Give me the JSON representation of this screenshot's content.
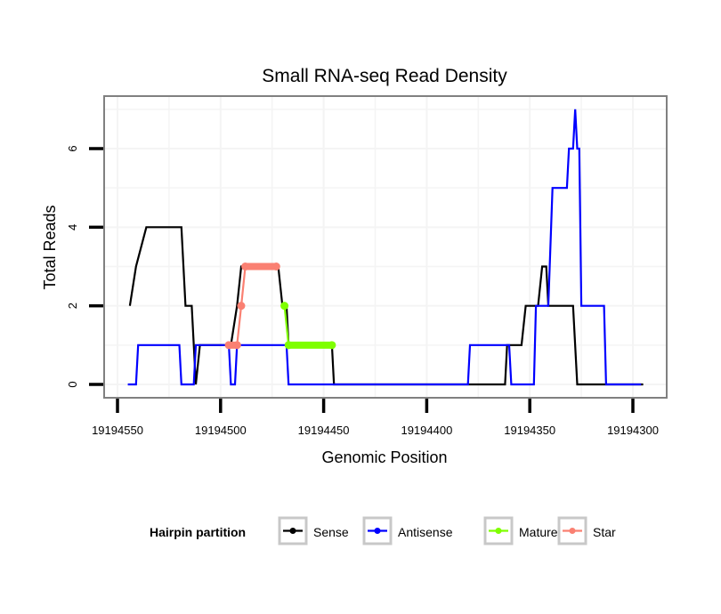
{
  "chart_data": {
    "type": "line",
    "title": "Small RNA-seq Read Density",
    "xlabel": "Genomic Position",
    "ylabel": "Total Reads",
    "xlim": [
      19194560,
      19194290
    ],
    "x_reversed": true,
    "ylim": [
      -0.35,
      7.35
    ],
    "x_ticks": [
      19194550,
      19194500,
      19194450,
      19194400,
      19194350,
      19194300
    ],
    "x_tick_labels": [
      "19194550",
      "19194500",
      "19194450",
      "19194400",
      "19194350",
      "19194300"
    ],
    "y_ticks": [
      0,
      2,
      4,
      6
    ],
    "y_tick_labels": [
      "0",
      "2",
      "4",
      "6"
    ],
    "grid": true,
    "legend": {
      "title": "Hairpin partition",
      "position": "bottom",
      "entries": [
        {
          "name": "Sense",
          "color": "#000000"
        },
        {
          "name": "Antisense",
          "color": "#0000ff"
        },
        {
          "name": "Mature",
          "color": "#7fff00"
        },
        {
          "name": "Star",
          "color": "#fa8072"
        }
      ]
    },
    "series": [
      {
        "name": "Sense",
        "color": "#000000",
        "style": "line",
        "x": [
          19194544,
          19194542,
          19194541,
          19194539,
          19194538,
          19194537,
          19194536,
          19194519,
          19194518,
          19194516,
          19194514,
          19194514,
          19194511,
          19194510,
          19194495,
          19194492,
          19194491,
          19194488,
          19194487,
          19194480,
          19194479,
          19194473,
          19194471,
          19194470,
          19194467,
          19194469,
          19194465,
          19194464,
          19194446,
          19194445,
          19194324,
          19194423,
          19194420,
          19194419,
          19194370,
          19194362,
          19194361,
          19194353,
          19194352,
          19194342,
          19194341,
          19194338,
          19194334,
          19194333,
          19194319,
          19194318,
          19194312,
          19194311,
          19194295
        ],
        "y": [
          2,
          2,
          3,
          3,
          3,
          4,
          4,
          4,
          4,
          2,
          2,
          2,
          2,
          0,
          1,
          1,
          1,
          1,
          2,
          2,
          3,
          3,
          3,
          3,
          2,
          2,
          2,
          2,
          1,
          1,
          0,
          0,
          0,
          0,
          0,
          0,
          0,
          1,
          1,
          2,
          2,
          2,
          3,
          3,
          2,
          2,
          0,
          0,
          0
        ],
        "points": [
          [
            19194544,
            2
          ],
          [
            19194541,
            3
          ],
          [
            19194536,
            4
          ],
          [
            19194519,
            4
          ],
          [
            19194517,
            2
          ],
          [
            19194514,
            2
          ],
          [
            19194512,
            0
          ],
          [
            19194510,
            1
          ],
          [
            19194495,
            1
          ],
          [
            19194492,
            2
          ],
          [
            19194490,
            3
          ],
          [
            19194472,
            3
          ],
          [
            19194470,
            2
          ],
          [
            19194468,
            2
          ],
          [
            19194467,
            1
          ],
          [
            19194446,
            1
          ],
          [
            19194445,
            0
          ],
          [
            19194362,
            0
          ],
          [
            19194361,
            1
          ],
          [
            19194354,
            1
          ],
          [
            19194352,
            2
          ],
          [
            19194346,
            2
          ],
          [
            19194344,
            3
          ],
          [
            19194342,
            3
          ],
          [
            19194341,
            2
          ],
          [
            19194329,
            2
          ],
          [
            19194327,
            0
          ],
          [
            19194295,
            0
          ]
        ]
      },
      {
        "name": "Antisense",
        "color": "#0000ff",
        "style": "line",
        "points": [
          [
            19194545,
            0
          ],
          [
            19194541,
            0
          ],
          [
            19194540,
            1
          ],
          [
            19194520,
            1
          ],
          [
            19194519,
            0
          ],
          [
            19194513,
            0
          ],
          [
            19194512,
            1
          ],
          [
            19194496,
            1
          ],
          [
            19194495,
            0
          ],
          [
            19194493,
            0
          ],
          [
            19194492,
            1
          ],
          [
            19194468,
            1
          ],
          [
            19194467,
            0
          ],
          [
            19194380,
            0
          ],
          [
            19194379,
            1
          ],
          [
            19194360,
            1
          ],
          [
            19194359,
            0
          ],
          [
            19194348,
            0
          ],
          [
            19194347,
            2
          ],
          [
            19194341,
            2
          ],
          [
            19194339,
            5
          ],
          [
            19194332,
            5
          ],
          [
            19194331,
            6
          ],
          [
            19194329,
            6
          ],
          [
            19194328,
            7
          ],
          [
            19194327,
            6
          ],
          [
            19194326,
            6
          ],
          [
            19194325,
            2
          ],
          [
            19194314,
            2
          ],
          [
            19194313,
            0
          ],
          [
            19194296,
            0
          ]
        ]
      },
      {
        "name": "Mature",
        "color": "#7fff00",
        "style": "highlight",
        "points": [
          [
            19194469,
            2
          ],
          [
            19194467,
            1
          ],
          [
            19194446,
            1
          ]
        ]
      },
      {
        "name": "Star",
        "color": "#fa8072",
        "style": "highlight",
        "points": [
          [
            19194496,
            1
          ],
          [
            19194492,
            1
          ],
          [
            19194490,
            2
          ],
          [
            19194488,
            3
          ],
          [
            19194473,
            3
          ]
        ]
      }
    ]
  }
}
